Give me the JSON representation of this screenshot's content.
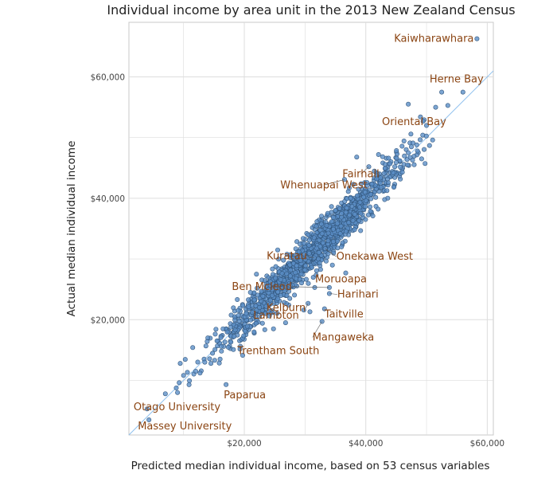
{
  "chart_data": {
    "type": "scatter",
    "title": "Individual income by area unit in the 2013 New Zealand Census",
    "xlabel": "Predicted median individual income, based on 53 census variables",
    "ylabel": "Actual median individual income",
    "xlim": [
      1000,
      61000
    ],
    "ylim": [
      1000,
      69000
    ],
    "xticks": [
      20000,
      40000,
      60000
    ],
    "yticks": [
      20000,
      40000,
      60000
    ],
    "xtick_labels": [
      "$20,000",
      "$40,000",
      "$60,000"
    ],
    "ytick_labels": [
      "$20,000",
      "$40,000",
      "$60,000"
    ],
    "grid": true,
    "reference_line": "y = x",
    "colors": {
      "points": "#5b8fc7",
      "point_edge": "#33577d",
      "line": "#8ec0ee",
      "labels": "#8b4513",
      "grid": "#dddddd"
    },
    "labels": [
      {
        "text": "Kaiwharawhara",
        "x": 58300,
        "y": 66300
      },
      {
        "text": "Herne Bay",
        "x": 56000,
        "y": 57500
      },
      {
        "text": "Oriental Bay",
        "x": 49000,
        "y": 53400
      },
      {
        "text": "Fairhall",
        "x": 40500,
        "y": 45200
      },
      {
        "text": "Whenuapai West",
        "x": 36500,
        "y": 43100
      },
      {
        "text": "Onekawa West",
        "x": 33300,
        "y": 31700
      },
      {
        "text": "Kuratau",
        "x": 31500,
        "y": 30200
      },
      {
        "text": "Moruoapa",
        "x": 36700,
        "y": 27700
      },
      {
        "text": "Ben Mcleod",
        "x": 34000,
        "y": 25300
      },
      {
        "text": "Harihari",
        "x": 34000,
        "y": 24300
      },
      {
        "text": "Kelburn",
        "x": 30500,
        "y": 22700
      },
      {
        "text": "Taitville",
        "x": 33200,
        "y": 21800
      },
      {
        "text": "Lambton",
        "x": 29800,
        "y": 21600
      },
      {
        "text": "Mangaweka",
        "x": 32800,
        "y": 19700
      },
      {
        "text": "Trentham South",
        "x": 17800,
        "y": 16300
      },
      {
        "text": "Paparua",
        "x": 17000,
        "y": 9300
      },
      {
        "text": "Otago University",
        "x": 4000,
        "y": 5300
      },
      {
        "text": "Massey University",
        "x": 4300,
        "y": 3500
      }
    ],
    "points": [
      [
        58300,
        66300
      ],
      [
        56000,
        57500
      ],
      [
        49000,
        53400
      ],
      [
        40500,
        45200
      ],
      [
        36500,
        43100
      ],
      [
        33300,
        31700
      ],
      [
        31500,
        30200
      ],
      [
        36700,
        27700
      ],
      [
        34000,
        25300
      ],
      [
        34000,
        24300
      ],
      [
        30500,
        22700
      ],
      [
        33200,
        21800
      ],
      [
        29800,
        21600
      ],
      [
        32800,
        19700
      ],
      [
        17800,
        16300
      ],
      [
        17000,
        9300
      ],
      [
        4000,
        5300
      ],
      [
        4300,
        3500
      ],
      [
        47000,
        55500
      ],
      [
        51500,
        55000
      ],
      [
        52500,
        57500
      ],
      [
        53500,
        55300
      ],
      [
        50000,
        52000
      ],
      [
        47500,
        48500
      ],
      [
        48500,
        47800
      ],
      [
        49200,
        46500
      ],
      [
        50500,
        48700
      ],
      [
        51000,
        49600
      ],
      [
        46800,
        46400
      ],
      [
        45000,
        45900
      ],
      [
        44000,
        45700
      ],
      [
        43000,
        44100
      ],
      [
        38500,
        46800
      ],
      [
        12000,
        11500
      ],
      [
        13500,
        13000
      ],
      [
        10000,
        10800
      ],
      [
        9000,
        8000
      ],
      [
        7000,
        7800
      ],
      [
        14500,
        12800
      ],
      [
        15500,
        16500
      ],
      [
        16200,
        15600
      ],
      [
        18500,
        18300
      ],
      [
        20500,
        18900
      ],
      [
        22500,
        22000
      ],
      [
        24000,
        25000
      ],
      [
        26000,
        26600
      ],
      [
        27500,
        29000
      ],
      [
        29000,
        31200
      ],
      [
        30500,
        34000
      ],
      [
        31500,
        33500
      ],
      [
        35000,
        38000
      ],
      [
        36000,
        37500
      ],
      [
        37500,
        40000
      ],
      [
        38800,
        41500
      ],
      [
        40200,
        42600
      ],
      [
        41800,
        43200
      ],
      [
        42500,
        41800
      ],
      [
        44500,
        44200
      ],
      [
        25500,
        31500
      ],
      [
        22000,
        27500
      ],
      [
        21000,
        24500
      ],
      [
        19000,
        21500
      ],
      [
        23500,
        21000
      ],
      [
        27000,
        24000
      ],
      [
        28500,
        26800
      ],
      [
        30000,
        28200
      ],
      [
        32200,
        30000
      ],
      [
        33800,
        33000
      ],
      [
        35800,
        34200
      ],
      [
        37200,
        36000
      ],
      [
        34500,
        29000
      ],
      [
        36000,
        32000
      ],
      [
        39000,
        38500
      ],
      [
        30800,
        21300
      ],
      [
        26800,
        19500
      ],
      [
        24800,
        18500
      ],
      [
        14000,
        17000
      ],
      [
        16500,
        18500
      ]
    ],
    "cloud": {
      "seed": 20130,
      "count": 1300,
      "xmin": 8000,
      "xmax": 50000,
      "center": 31000,
      "spread": 7500,
      "noise": 1700
    }
  }
}
